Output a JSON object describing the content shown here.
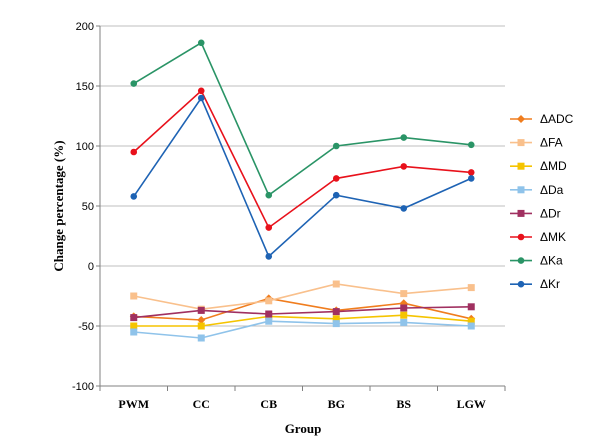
{
  "chart_data": {
    "type": "line",
    "xlabel": "Group",
    "ylabel": "Change percentage (%)",
    "ylim": [
      -100,
      200
    ],
    "yticks": [
      -100,
      -50,
      0,
      50,
      100,
      150,
      200
    ],
    "categories": [
      "PWM",
      "CC",
      "CB",
      "BG",
      "BS",
      "LGW"
    ],
    "legend_position": "right",
    "series": [
      {
        "name": "ΔADC",
        "color": "#f07d1e",
        "marker": "diamond",
        "values": [
          -42,
          -45,
          -27,
          -37,
          -31,
          -44
        ]
      },
      {
        "name": "ΔFA",
        "color": "#f9c08c",
        "marker": "square",
        "values": [
          -25,
          -36,
          -29,
          -15,
          -23,
          -18
        ]
      },
      {
        "name": "ΔMD",
        "color": "#f5c400",
        "marker": "square",
        "values": [
          -50,
          -50,
          -42,
          -44,
          -41,
          -46
        ]
      },
      {
        "name": "ΔDa",
        "color": "#8fc3ea",
        "marker": "square",
        "values": [
          -55,
          -60,
          -46,
          -48,
          -47,
          -50
        ]
      },
      {
        "name": "ΔDr",
        "color": "#a03060",
        "marker": "square",
        "values": [
          -43,
          -37,
          -40,
          -38,
          -35,
          -34
        ]
      },
      {
        "name": "ΔMK",
        "color": "#e8111b",
        "marker": "circle",
        "values": [
          95,
          146,
          32,
          73,
          83,
          78
        ]
      },
      {
        "name": "ΔKa",
        "color": "#2a9466",
        "marker": "circle",
        "values": [
          152,
          186,
          59,
          100,
          107,
          101
        ]
      },
      {
        "name": "ΔKr",
        "color": "#1e63b4",
        "marker": "circle",
        "values": [
          58,
          140,
          8,
          59,
          48,
          73
        ]
      }
    ]
  }
}
